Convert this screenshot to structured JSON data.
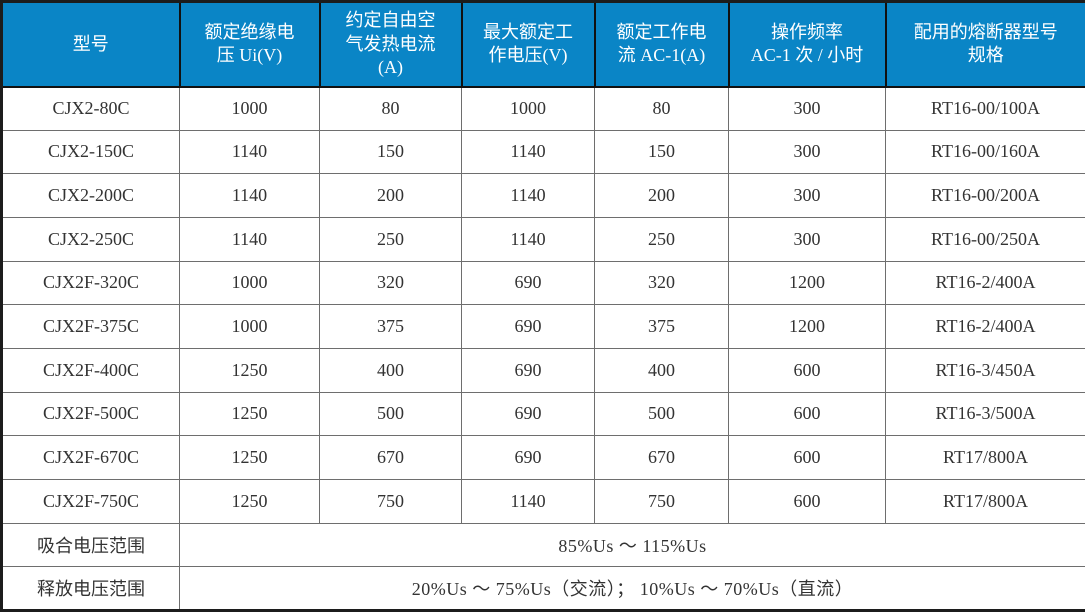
{
  "colors": {
    "header_bg": "#0a85c6",
    "header_text": "#ffffff",
    "body_text": "#333333",
    "grid_line": "#6e6e6e",
    "outer_border": "#1c1c1c"
  },
  "chart_data": {
    "type": "table",
    "columns": [
      "型号",
      "额定绝缘电\n压 Ui(V)",
      "约定自由空\n气发热电流\n(A)",
      "最大额定工\n作电压(V)",
      "额定工作电\n流 AC-1(A)",
      "操作频率\nAC-1 次 / 小时",
      "配用的熔断器型号\n规格"
    ],
    "rows": [
      [
        "CJX2-80C",
        "1000",
        "80",
        "1000",
        "80",
        "300",
        "RT16-00/100A"
      ],
      [
        "CJX2-150C",
        "1140",
        "150",
        "1140",
        "150",
        "300",
        "RT16-00/160A"
      ],
      [
        "CJX2-200C",
        "1140",
        "200",
        "1140",
        "200",
        "300",
        "RT16-00/200A"
      ],
      [
        "CJX2-250C",
        "1140",
        "250",
        "1140",
        "250",
        "300",
        "RT16-00/250A"
      ],
      [
        "CJX2F-320C",
        "1000",
        "320",
        "690",
        "320",
        "1200",
        "RT16-2/400A"
      ],
      [
        "CJX2F-375C",
        "1000",
        "375",
        "690",
        "375",
        "1200",
        "RT16-2/400A"
      ],
      [
        "CJX2F-400C",
        "1250",
        "400",
        "690",
        "400",
        "600",
        "RT16-3/450A"
      ],
      [
        "CJX2F-500C",
        "1250",
        "500",
        "690",
        "500",
        "600",
        "RT16-3/500A"
      ],
      [
        "CJX2F-670C",
        "1250",
        "670",
        "690",
        "670",
        "600",
        "RT17/800A"
      ],
      [
        "CJX2F-750C",
        "1250",
        "750",
        "1140",
        "750",
        "600",
        "RT17/800A"
      ]
    ],
    "footer_rows": [
      {
        "label": "吸合电压范围",
        "value": "85%Us ～ 115%Us"
      },
      {
        "label": "释放电压范围",
        "value": "20%Us ～ 75%Us（交流）； 10%Us ～ 70%Us（直流）"
      }
    ]
  }
}
